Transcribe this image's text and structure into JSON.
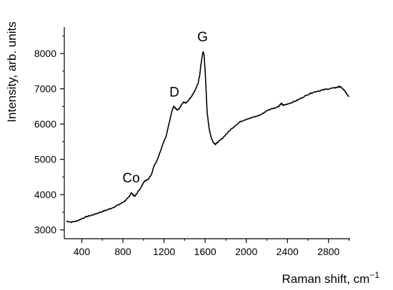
{
  "chart_data": {
    "type": "line",
    "xlabel": "Raman shift, cm",
    "xlabel_superscript": "−1",
    "ylabel": "Intensity, arb. units",
    "xlim": [
      230,
      3010
    ],
    "ylim": [
      2750,
      8750
    ],
    "x_ticks": [
      400,
      800,
      1200,
      1600,
      2000,
      2400,
      2800
    ],
    "x_minor_ticks": [
      600,
      1000,
      1400,
      1800,
      2200,
      2600,
      3000
    ],
    "y_ticks": [
      3000,
      4000,
      5000,
      6000,
      7000,
      8000
    ],
    "y_minor_ticks": [
      3500,
      4500,
      5500,
      6500,
      7500,
      8500
    ],
    "grid": false,
    "legend": "none",
    "line_color": "#000000",
    "annotations": [
      {
        "text": "Co",
        "x": 880,
        "y": 4350
      },
      {
        "text": "D",
        "x": 1300,
        "y": 6780
      },
      {
        "text": "G",
        "x": 1575,
        "y": 8350
      }
    ],
    "series": [
      {
        "x": [
          250,
          300,
          350,
          400,
          450,
          500,
          550,
          600,
          650,
          700,
          750,
          800,
          830,
          860,
          880,
          900,
          920,
          950,
          980,
          1000,
          1020,
          1050,
          1080,
          1100,
          1130,
          1160,
          1190,
          1220,
          1240,
          1260,
          1280,
          1295,
          1310,
          1330,
          1350,
          1370,
          1390,
          1410,
          1430,
          1450,
          1470,
          1490,
          1510,
          1530,
          1545,
          1560,
          1570,
          1580,
          1590,
          1600,
          1610,
          1620,
          1640,
          1660,
          1680,
          1700,
          1720,
          1750,
          1800,
          1850,
          1900,
          1950,
          2000,
          2050,
          2100,
          2150,
          2200,
          2250,
          2300,
          2320,
          2340,
          2350,
          2360,
          2400,
          2450,
          2500,
          2550,
          2600,
          2650,
          2700,
          2750,
          2800,
          2850,
          2880,
          2900,
          2920,
          2940,
          2960,
          2980,
          3000
        ],
        "y": [
          3250,
          3220,
          3250,
          3320,
          3380,
          3420,
          3470,
          3520,
          3570,
          3630,
          3700,
          3780,
          3850,
          3930,
          4060,
          3980,
          3960,
          4100,
          4220,
          4350,
          4400,
          4450,
          4600,
          4800,
          4950,
          5200,
          5450,
          5650,
          5900,
          6150,
          6400,
          6500,
          6450,
          6400,
          6450,
          6550,
          6620,
          6600,
          6650,
          6720,
          6800,
          6900,
          7000,
          7150,
          7350,
          7700,
          7900,
          8060,
          7950,
          7500,
          6900,
          6300,
          5850,
          5600,
          5480,
          5430,
          5480,
          5550,
          5700,
          5850,
          5980,
          6080,
          6140,
          6180,
          6220,
          6280,
          6380,
          6440,
          6480,
          6520,
          6580,
          6560,
          6530,
          6570,
          6620,
          6680,
          6760,
          6840,
          6900,
          6940,
          6970,
          7000,
          7020,
          7040,
          7060,
          7050,
          6990,
          6930,
          6840,
          6780
        ]
      }
    ]
  }
}
